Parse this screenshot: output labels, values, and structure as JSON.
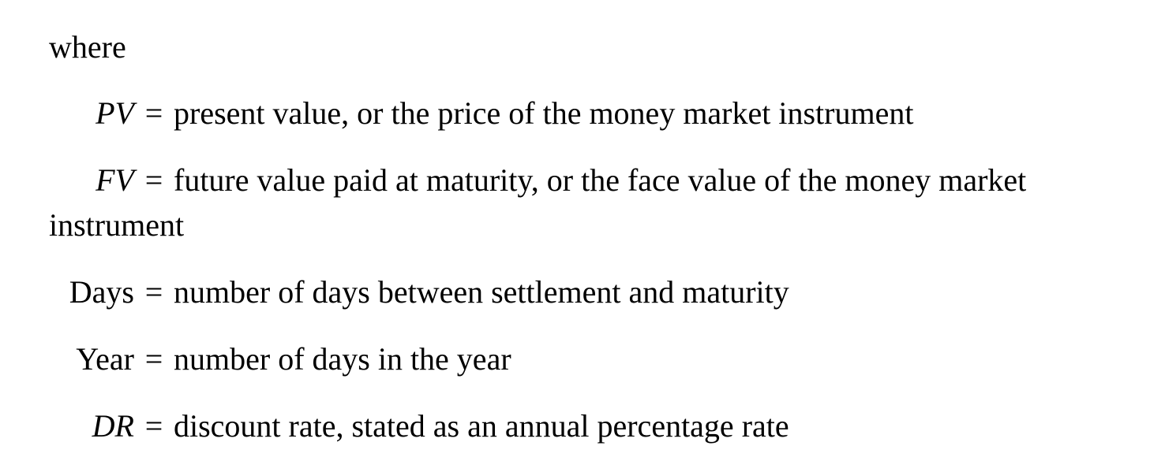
{
  "intro": "where",
  "definitions": [
    {
      "term": "PV",
      "italic": true,
      "equals": "=",
      "text": "present value, or the price of the money market instrument"
    },
    {
      "term": "FV",
      "italic": true,
      "equals": "=",
      "text": "future value paid at maturity, or the face value of the money market",
      "continuation": "instrument"
    },
    {
      "term": "Days",
      "italic": false,
      "equals": "=",
      "text": "number of days between settlement and maturity"
    },
    {
      "term": "Year",
      "italic": false,
      "equals": "=",
      "text": "number of days in the year"
    },
    {
      "term": "DR",
      "italic": true,
      "equals": "=",
      "text": "discount rate, stated as an annual percentage rate"
    }
  ]
}
